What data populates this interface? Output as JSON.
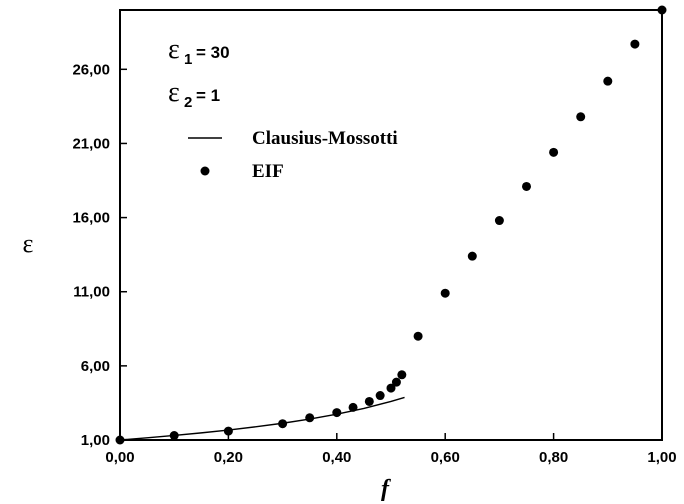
{
  "chart_data": {
    "type": "scatter",
    "xlabel": "f",
    "ylabel": "ε",
    "xlim": [
      0,
      1
    ],
    "ylim": [
      1,
      30
    ],
    "x_ticks": [
      "0,00",
      "0,20",
      "0,40",
      "0,60",
      "0,80",
      "1,00"
    ],
    "y_ticks": [
      "1,00",
      "6,00",
      "11,00",
      "16,00",
      "21,00",
      "26,00"
    ],
    "grid": false,
    "legend_position": "top-left",
    "annotations": {
      "eps1": {
        "symbol": "ε",
        "subscript": "1",
        "value": "= 30"
      },
      "eps2": {
        "symbol": "ε",
        "subscript": "2",
        "value": "= 1"
      }
    },
    "series": [
      {
        "name": "Clausius-Mossotti",
        "style": "line",
        "x": [
          0,
          0.05,
          0.1,
          0.15,
          0.2,
          0.25,
          0.3,
          0.35,
          0.4,
          0.45,
          0.5,
          0.525
        ],
        "y": [
          1,
          1.15,
          1.31,
          1.48,
          1.67,
          1.89,
          2.13,
          2.41,
          2.74,
          3.13,
          3.6,
          3.87
        ]
      },
      {
        "name": "EIF",
        "style": "points",
        "x": [
          0,
          0.1,
          0.2,
          0.3,
          0.35,
          0.4,
          0.43,
          0.46,
          0.48,
          0.5,
          0.51,
          0.52,
          0.55,
          0.6,
          0.65,
          0.7,
          0.75,
          0.8,
          0.85,
          0.9,
          0.95,
          1.0
        ],
        "y": [
          1.0,
          1.3,
          1.6,
          2.1,
          2.5,
          2.85,
          3.2,
          3.6,
          4.0,
          4.5,
          4.9,
          5.4,
          8.0,
          10.9,
          13.4,
          15.8,
          18.1,
          20.4,
          22.8,
          25.2,
          27.7,
          30.0
        ]
      }
    ]
  }
}
